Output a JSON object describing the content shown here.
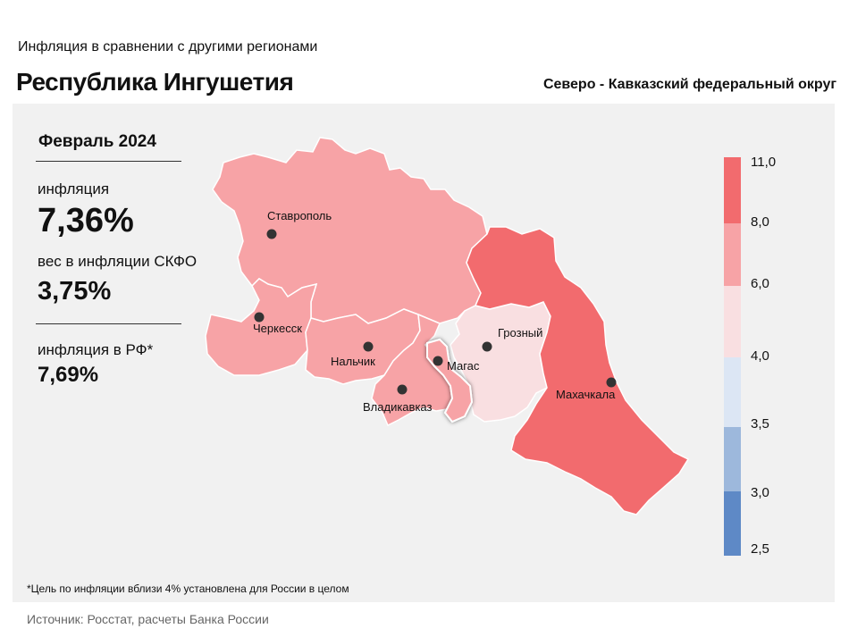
{
  "header": {
    "supertitle": "Инфляция  в сравнении  с другими  регионами",
    "title": "Республика Ингушетия",
    "district": "Северо - Кавказский федеральный округ"
  },
  "stats": {
    "period": "Февраль 2024",
    "inflation_label": "инфляция",
    "inflation_value": "7,36%",
    "weight_label": "вес в инфляции  СКФО",
    "weight_value": "3,75%",
    "rf_label": "инфляция  в РФ*",
    "rf_value": "7,69%"
  },
  "legend": {
    "ticks": [
      "11,0",
      "8,0",
      "6,0",
      "4,0",
      "3,5",
      "3,0",
      "2,5"
    ],
    "colors": [
      "#f26b6e",
      "#f7a3a6",
      "#f9dfe1",
      "#dce6f4",
      "#9db8dc",
      "#5e89c6"
    ]
  },
  "map": {
    "regions": [
      {
        "name": "Ставрополь",
        "color": "#f7a3a6"
      },
      {
        "name": "Черкесск",
        "color": "#f7a3a6"
      },
      {
        "name": "Нальчик",
        "color": "#f7a3a6"
      },
      {
        "name": "Владикавказ",
        "color": "#f7a3a6"
      },
      {
        "name": "Магас",
        "color": "#f7a3a6"
      },
      {
        "name": "Грозный",
        "color": "#f9dfe1"
      },
      {
        "name": "Махачкала",
        "color": "#f26b6e"
      }
    ]
  },
  "footnote": "*Цель по инфляции вблизи 4% установлена для России в целом",
  "source": "Источник: Росстат, расчеты Банка России"
}
